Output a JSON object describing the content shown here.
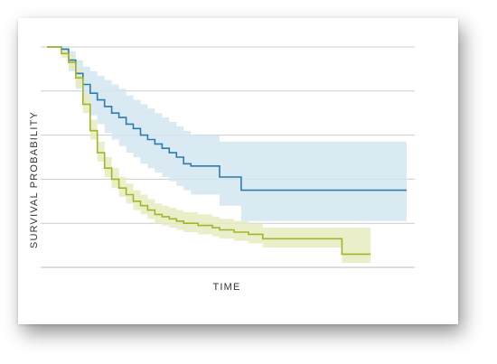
{
  "chart_data": {
    "type": "line",
    "title": "",
    "xlabel": "TIME",
    "ylabel": "SURVIVAL PROBABILITY",
    "xlim": [
      0,
      100
    ],
    "ylim": [
      0,
      1
    ],
    "grid": true,
    "legend": "none",
    "series": [
      {
        "color": "#2e7bad",
        "band_color": "#d2e6f1",
        "x": [
          0,
          4,
          6,
          8,
          10,
          12,
          14,
          16,
          18,
          20,
          22,
          24,
          26,
          28,
          30,
          32,
          34,
          36,
          38,
          40,
          42,
          44,
          46,
          48,
          50,
          52,
          54,
          56,
          58,
          60,
          62,
          64,
          66,
          68,
          70,
          72,
          74,
          76,
          78,
          80,
          82,
          84,
          86,
          88,
          90,
          92,
          94,
          96,
          98,
          100
        ],
        "y": [
          1.0,
          0.99,
          0.94,
          0.88,
          0.83,
          0.79,
          0.76,
          0.73,
          0.7,
          0.68,
          0.65,
          0.63,
          0.6,
          0.58,
          0.56,
          0.54,
          0.52,
          0.5,
          0.47,
          0.46,
          0.46,
          0.46,
          0.46,
          0.41,
          0.41,
          0.41,
          0.35,
          0.35,
          0.35,
          0.35,
          0.35,
          0.35,
          0.35,
          0.35,
          0.35,
          0.35,
          0.35,
          0.35,
          0.35,
          0.35,
          0.35,
          0.35,
          0.35,
          0.35,
          0.35,
          0.35,
          0.35,
          0.35,
          0.35,
          0.35
        ],
        "lower": [
          1.0,
          0.97,
          0.89,
          0.81,
          0.74,
          0.69,
          0.65,
          0.61,
          0.58,
          0.55,
          0.52,
          0.5,
          0.47,
          0.45,
          0.43,
          0.41,
          0.39,
          0.37,
          0.35,
          0.33,
          0.33,
          0.33,
          0.33,
          0.28,
          0.28,
          0.28,
          0.21,
          0.21,
          0.21,
          0.21,
          0.21,
          0.21,
          0.21,
          0.21,
          0.21,
          0.21,
          0.21,
          0.21,
          0.21,
          0.21,
          0.21,
          0.21,
          0.21,
          0.21,
          0.21,
          0.21,
          0.21,
          0.21,
          0.21,
          0.21
        ],
        "upper": [
          1.0,
          1.0,
          0.98,
          0.94,
          0.91,
          0.89,
          0.87,
          0.85,
          0.83,
          0.81,
          0.78,
          0.76,
          0.74,
          0.72,
          0.7,
          0.68,
          0.66,
          0.64,
          0.62,
          0.6,
          0.6,
          0.6,
          0.6,
          0.57,
          0.57,
          0.57,
          0.57,
          0.57,
          0.57,
          0.57,
          0.57,
          0.57,
          0.57,
          0.57,
          0.57,
          0.57,
          0.57,
          0.57,
          0.57,
          0.57,
          0.57,
          0.57,
          0.57,
          0.57,
          0.57,
          0.57,
          0.57,
          0.57,
          0.57,
          0.57
        ]
      },
      {
        "color": "#a5b52a",
        "band_color": "#e6ebbf",
        "x": [
          0,
          4,
          6,
          8,
          10,
          12,
          14,
          16,
          18,
          20,
          22,
          24,
          26,
          28,
          30,
          32,
          34,
          36,
          38,
          40,
          42,
          44,
          46,
          48,
          50,
          52,
          54,
          56,
          58,
          60,
          62,
          64,
          66,
          68,
          70,
          72,
          74,
          76,
          78,
          80,
          82,
          84,
          86,
          88,
          90
        ],
        "y": [
          1.0,
          0.97,
          0.93,
          0.86,
          0.74,
          0.62,
          0.52,
          0.45,
          0.4,
          0.36,
          0.33,
          0.3,
          0.28,
          0.26,
          0.24,
          0.23,
          0.22,
          0.21,
          0.2,
          0.2,
          0.19,
          0.19,
          0.18,
          0.17,
          0.17,
          0.16,
          0.16,
          0.15,
          0.15,
          0.13,
          0.13,
          0.13,
          0.13,
          0.13,
          0.13,
          0.13,
          0.13,
          0.13,
          0.13,
          0.13,
          0.06,
          0.06,
          0.06,
          0.06,
          0.06
        ],
        "lower": [
          1.0,
          0.95,
          0.9,
          0.82,
          0.7,
          0.58,
          0.48,
          0.41,
          0.36,
          0.32,
          0.29,
          0.26,
          0.24,
          0.22,
          0.2,
          0.19,
          0.18,
          0.17,
          0.16,
          0.16,
          0.15,
          0.15,
          0.14,
          0.13,
          0.13,
          0.12,
          0.12,
          0.11,
          0.11,
          0.09,
          0.09,
          0.09,
          0.09,
          0.09,
          0.09,
          0.09,
          0.09,
          0.09,
          0.09,
          0.09,
          0.02,
          0.02,
          0.02,
          0.02,
          0.02
        ],
        "upper": [
          1.0,
          0.99,
          0.96,
          0.9,
          0.79,
          0.67,
          0.57,
          0.5,
          0.45,
          0.41,
          0.38,
          0.35,
          0.33,
          0.31,
          0.29,
          0.28,
          0.27,
          0.26,
          0.25,
          0.25,
          0.24,
          0.24,
          0.23,
          0.22,
          0.22,
          0.21,
          0.21,
          0.2,
          0.2,
          0.18,
          0.18,
          0.18,
          0.18,
          0.18,
          0.18,
          0.18,
          0.18,
          0.18,
          0.18,
          0.18,
          0.18,
          0.18,
          0.18,
          0.18,
          0.18
        ]
      }
    ]
  }
}
